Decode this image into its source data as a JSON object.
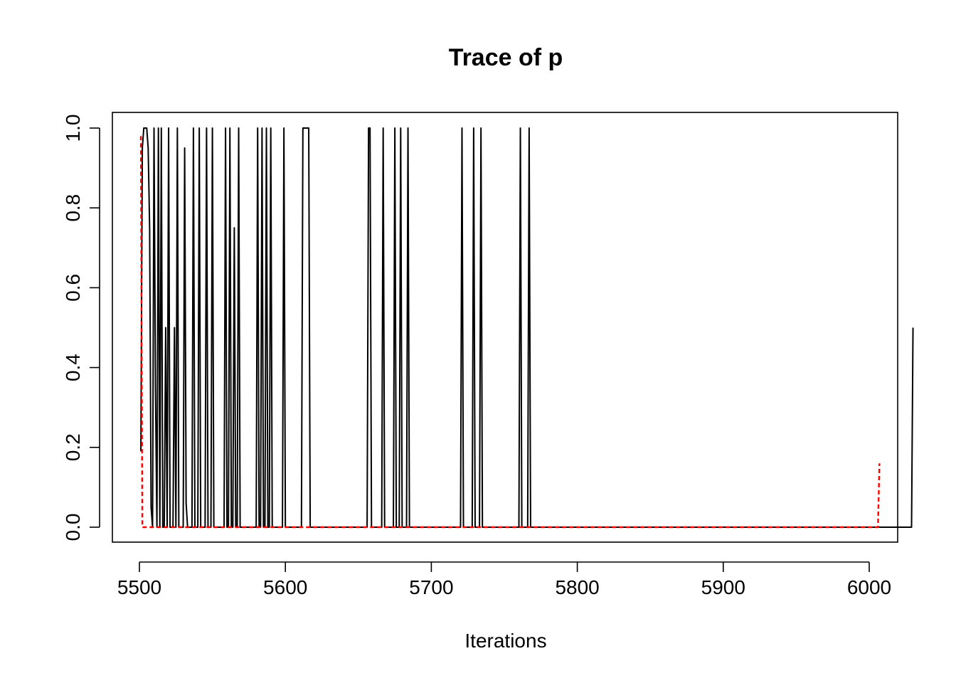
{
  "chart_data": {
    "type": "line",
    "title": "Trace of p",
    "xlabel": "Iterations",
    "ylabel": "",
    "xlim": [
      5500,
      6000
    ],
    "ylim": [
      0,
      1
    ],
    "xticks": [
      5500,
      5600,
      5700,
      5800,
      5900,
      6000
    ],
    "yticks": [
      0.0,
      0.2,
      0.4,
      0.6,
      0.8,
      1.0
    ],
    "ytick_labels": [
      "0.0",
      "0.2",
      "0.4",
      "0.6",
      "0.8",
      "1.0"
    ],
    "grid": false,
    "legend": "none",
    "x_start": 5501,
    "x_step": 1,
    "series": [
      {
        "color": "#000000",
        "dash": "solid",
        "values": [
          0.19,
          0.95,
          1.0,
          1.0,
          1.0,
          0.95,
          0.75,
          0.05,
          0.0,
          1.0,
          0.35,
          0.0,
          1.0,
          0.0,
          1.0,
          0.0,
          0.0,
          0.5,
          0.0,
          1.0,
          0.0,
          0.0,
          0.0,
          0.5,
          0.0,
          1.0,
          0.0,
          0.0,
          0.0,
          0.0,
          0.95,
          0.06,
          0.0,
          0.0,
          0.0,
          0.0,
          1.0,
          0.0,
          0.0,
          0.0,
          1.0,
          0.0,
          0.0,
          0.0,
          0.0,
          1.0,
          0.0,
          0.0,
          0.0,
          1.0,
          0.0,
          0.0,
          0.0,
          0.0,
          0.0,
          0.0,
          0.0,
          0.0,
          1.0,
          0.0,
          0.0,
          1.0,
          0.0,
          0.0,
          0.75,
          0.0,
          0.0,
          1.0,
          0.0,
          0.0,
          0.0,
          0.0,
          0.0,
          0.0,
          0.0,
          0.0,
          0.0,
          0.0,
          0.0,
          0.0,
          1.0,
          0.0,
          0.0,
          1.0,
          0.0,
          0.0,
          1.0,
          0.0,
          0.0,
          1.0,
          0.0,
          0.0,
          0.0,
          0.0,
          0.0,
          0.0,
          0.0,
          0.0,
          1.0,
          0.0,
          0.0,
          0.0,
          0.0,
          0.0,
          0.0,
          0.0,
          0.0,
          0.0,
          0.0,
          0.0,
          0.0,
          1.0,
          1.0,
          1.0,
          1.0,
          1.0,
          0.0,
          0.0,
          0.0,
          0.0,
          0.0,
          0.0,
          0.0,
          0.0,
          0.0,
          0.0,
          0.0,
          0.0,
          0.0,
          0.0,
          0.0,
          0.0,
          0.0,
          0.0,
          0.0,
          0.0,
          0.0,
          0.0,
          0.0,
          0.0,
          0.0,
          0.0,
          0.0,
          0.0,
          0.0,
          0.0,
          0.0,
          0.0,
          0.0,
          0.0,
          0.0,
          0.0,
          0.0,
          0.0,
          0.0,
          0.0,
          1.0,
          1.0,
          0.0,
          0.0,
          0.0,
          0.0,
          0.0,
          0.0,
          0.0,
          0.0,
          1.0,
          0.0,
          0.0,
          0.0,
          0.0,
          0.0,
          0.0,
          0.0,
          1.0,
          0.0,
          0.0,
          0.0,
          1.0,
          0.0,
          0.0,
          0.0,
          0.0,
          1.0,
          0.0,
          0.0,
          0.0,
          0.0,
          0.0,
          0.0,
          0.0,
          0.0,
          0.0,
          0.0,
          0.0,
          0.0,
          0.0,
          0.0,
          0.0,
          0.0,
          0.0,
          0.0,
          0.0,
          0.0,
          0.0,
          0.0,
          0.0,
          0.0,
          0.0,
          0.0,
          0.0,
          0.0,
          0.0,
          0.0,
          0.0,
          0.0,
          0.0,
          0.0,
          0.0,
          0.0,
          1.0,
          0.0,
          0.0,
          0.0,
          0.0,
          0.0,
          0.0,
          0.0,
          1.0,
          0.0,
          0.0,
          0.0,
          0.0,
          1.0,
          0.0,
          0.0,
          0.0,
          0.0,
          0.0,
          0.0,
          0.0,
          0.0,
          0.0,
          0.0,
          0.0,
          0.0,
          0.0,
          0.0,
          0.0,
          0.0,
          0.0,
          0.0,
          0.0,
          0.0,
          0.0,
          0.0,
          0.0,
          0.0,
          0.0,
          0.0,
          1.0,
          0.0,
          0.0,
          0.0,
          0.0,
          0.0,
          1.0,
          0.0,
          0.0,
          0.0,
          0.0,
          0.0,
          0.0,
          0.0,
          0.0,
          0.0,
          0.0,
          0.0,
          0.0,
          0.0,
          0.0,
          0.0,
          0.0,
          0.0,
          0.0,
          0.0,
          0.0,
          0.0,
          0.0,
          0.0,
          0.0,
          0.0,
          0.0,
          0.0,
          0.0,
          0.0,
          0.0,
          0.0,
          0.0,
          0.0,
          0.0,
          0.0,
          0.0,
          0.0,
          0.0,
          0.0,
          0.0,
          0.0,
          0.0,
          0.0,
          0.0,
          0.0,
          0.0,
          0.0,
          0.0,
          0.0,
          0.0,
          0.0,
          0.0,
          0.0,
          0.0,
          0.0,
          0.0,
          0.0,
          0.0,
          0.0,
          0.0,
          0.0,
          0.0,
          0.0,
          0.0,
          0.0,
          0.0,
          0.0,
          0.0,
          0.0,
          0.0,
          0.0,
          0.0,
          0.0,
          0.0,
          0.0,
          0.0,
          0.0,
          0.0,
          0.0,
          0.0,
          0.0,
          0.0,
          0.0,
          0.0,
          0.0,
          0.0,
          0.0,
          0.0,
          0.0,
          0.0,
          0.0,
          0.0,
          0.0,
          0.0,
          0.0,
          0.0,
          0.0,
          0.0,
          0.0,
          0.0,
          0.0,
          0.0,
          0.0,
          0.0,
          0.0,
          0.0,
          0.0,
          0.0,
          0.0,
          0.0,
          0.0,
          0.0,
          0.0,
          0.0,
          0.0,
          0.0,
          0.0,
          0.0,
          0.0,
          0.0,
          0.0,
          0.0,
          0.0,
          0.0,
          0.0,
          0.0,
          0.0,
          0.0,
          0.0,
          0.0,
          0.0,
          0.0,
          0.0,
          0.0,
          0.0,
          0.0,
          0.0,
          0.0,
          0.0,
          0.0,
          0.0,
          0.0,
          0.0,
          0.0,
          0.0,
          0.0,
          0.0,
          0.0,
          0.0,
          0.0,
          0.0,
          0.0,
          0.0,
          0.0,
          0.0,
          0.0,
          0.0,
          0.0,
          0.0,
          0.0,
          0.0,
          0.0,
          0.0,
          0.0,
          0.0,
          0.0,
          0.0,
          0.0,
          0.0,
          0.0,
          0.0,
          0.0,
          0.0,
          0.0,
          0.0,
          0.0,
          0.0,
          0.0,
          0.0,
          0.0,
          0.0,
          0.0,
          0.0,
          0.0,
          0.0,
          0.0,
          0.0,
          0.0,
          0.0,
          0.0,
          0.0,
          0.0,
          0.0,
          0.0,
          0.0,
          0.0,
          0.0,
          0.0,
          0.0,
          0.0,
          0.0,
          0.0,
          0.0,
          0.0,
          0.0,
          0.0,
          0.0,
          0.0,
          0.0,
          0.0,
          0.0,
          0.0,
          0.0,
          0.0,
          0.0,
          0.0,
          0.0,
          0.0,
          0.0,
          0.0,
          0.0,
          0.0,
          0.0,
          0.0,
          0.0,
          0.0,
          0.0,
          0.0,
          0.0,
          0.0,
          0.0,
          0.0,
          0.0,
          0.0,
          0.0,
          0.0,
          0.0,
          0.0,
          0.0,
          0.0,
          0.0,
          0.0,
          0.0,
          0.0,
          0.0,
          0.0,
          0.0,
          0.0,
          0.0,
          0.0,
          0.0,
          0.0,
          0.0,
          0.0,
          0.0,
          0.0,
          0.0,
          0.0,
          0.0,
          0.0,
          0.0,
          0.0,
          0.5
        ]
      },
      {
        "color": "#ff0000",
        "dash": "dashed",
        "values": [
          0.98,
          0.0,
          0.0,
          0.0,
          0.0,
          0.0,
          0.0,
          0.0,
          0.0,
          0.0,
          0.0,
          0.0,
          0.0,
          0.0,
          0.0,
          0.0,
          0.0,
          0.0,
          0.0,
          0.0,
          0.0,
          0.0,
          0.0,
          0.0,
          0.0,
          0.0,
          0.0,
          0.0,
          0.0,
          0.0,
          0.0,
          0.0,
          0.0,
          0.0,
          0.0,
          0.0,
          0.0,
          0.0,
          0.0,
          0.0,
          0.0,
          0.0,
          0.0,
          0.0,
          0.0,
          0.0,
          0.0,
          0.0,
          0.0,
          0.0,
          0.0,
          0.0,
          0.0,
          0.0,
          0.0,
          0.0,
          0.0,
          0.0,
          0.0,
          0.0,
          0.0,
          0.0,
          0.0,
          0.0,
          0.0,
          0.0,
          0.0,
          0.0,
          0.0,
          0.0,
          0.0,
          0.0,
          0.0,
          0.0,
          0.0,
          0.0,
          0.0,
          0.0,
          0.0,
          0.0,
          0.0,
          0.0,
          0.0,
          0.0,
          0.0,
          0.0,
          0.0,
          0.0,
          0.0,
          0.0,
          0.0,
          0.0,
          0.0,
          0.0,
          0.0,
          0.0,
          0.0,
          0.0,
          0.0,
          0.0,
          0.0,
          0.0,
          0.0,
          0.0,
          0.0,
          0.0,
          0.0,
          0.0,
          0.0,
          0.0,
          0.0,
          0.0,
          0.0,
          0.0,
          0.0,
          0.0,
          0.0,
          0.0,
          0.0,
          0.0,
          0.0,
          0.0,
          0.0,
          0.0,
          0.0,
          0.0,
          0.0,
          0.0,
          0.0,
          0.0,
          0.0,
          0.0,
          0.0,
          0.0,
          0.0,
          0.0,
          0.0,
          0.0,
          0.0,
          0.0,
          0.0,
          0.0,
          0.0,
          0.0,
          0.0,
          0.0,
          0.0,
          0.0,
          0.0,
          0.0,
          0.0,
          0.0,
          0.0,
          0.0,
          0.0,
          0.0,
          0.0,
          0.0,
          0.0,
          0.0,
          0.0,
          0.0,
          0.0,
          0.0,
          0.0,
          0.0,
          0.0,
          0.0,
          0.0,
          0.0,
          0.0,
          0.0,
          0.0,
          0.0,
          0.0,
          0.0,
          0.0,
          0.0,
          0.0,
          0.0,
          0.0,
          0.0,
          0.0,
          0.0,
          0.0,
          0.0,
          0.0,
          0.0,
          0.0,
          0.0,
          0.0,
          0.0,
          0.0,
          0.0,
          0.0,
          0.0,
          0.0,
          0.0,
          0.0,
          0.0,
          0.0,
          0.0,
          0.0,
          0.0,
          0.0,
          0.0,
          0.0,
          0.0,
          0.0,
          0.0,
          0.0,
          0.0,
          0.0,
          0.0,
          0.0,
          0.0,
          0.0,
          0.0,
          0.0,
          0.0,
          0.0,
          0.0,
          0.0,
          0.0,
          0.0,
          0.0,
          0.0,
          0.0,
          0.0,
          0.0,
          0.0,
          0.0,
          0.0,
          0.0,
          0.0,
          0.0,
          0.0,
          0.0,
          0.0,
          0.0,
          0.0,
          0.0,
          0.0,
          0.0,
          0.0,
          0.0,
          0.0,
          0.0,
          0.0,
          0.0,
          0.0,
          0.0,
          0.0,
          0.0,
          0.0,
          0.0,
          0.0,
          0.0,
          0.0,
          0.0,
          0.0,
          0.0,
          0.0,
          0.0,
          0.0,
          0.0,
          0.0,
          0.0,
          0.0,
          0.0,
          0.0,
          0.0,
          0.0,
          0.0,
          0.0,
          0.0,
          0.0,
          0.0,
          0.0,
          0.0,
          0.0,
          0.0,
          0.0,
          0.0,
          0.0,
          0.0,
          0.0,
          0.0,
          0.0,
          0.0,
          0.0,
          0.0,
          0.0,
          0.0,
          0.0,
          0.0,
          0.0,
          0.0,
          0.0,
          0.0,
          0.0,
          0.0,
          0.0,
          0.0,
          0.0,
          0.0,
          0.0,
          0.0,
          0.0,
          0.0,
          0.0,
          0.0,
          0.0,
          0.0,
          0.0,
          0.0,
          0.0,
          0.0,
          0.0,
          0.0,
          0.0,
          0.0,
          0.0,
          0.0,
          0.0,
          0.0,
          0.0,
          0.0,
          0.0,
          0.0,
          0.0,
          0.0,
          0.0,
          0.0,
          0.0,
          0.0,
          0.0,
          0.0,
          0.0,
          0.0,
          0.0,
          0.0,
          0.0,
          0.0,
          0.0,
          0.0,
          0.0,
          0.0,
          0.0,
          0.0,
          0.0,
          0.0,
          0.0,
          0.0,
          0.0,
          0.0,
          0.0,
          0.0,
          0.0,
          0.0,
          0.0,
          0.0,
          0.0,
          0.0,
          0.0,
          0.0,
          0.0,
          0.0,
          0.0,
          0.0,
          0.0,
          0.0,
          0.0,
          0.0,
          0.0,
          0.0,
          0.0,
          0.0,
          0.0,
          0.0,
          0.0,
          0.0,
          0.0,
          0.0,
          0.0,
          0.0,
          0.0,
          0.0,
          0.0,
          0.0,
          0.0,
          0.0,
          0.0,
          0.0,
          0.0,
          0.0,
          0.0,
          0.0,
          0.0,
          0.0,
          0.0,
          0.0,
          0.0,
          0.0,
          0.0,
          0.0,
          0.0,
          0.0,
          0.0,
          0.0,
          0.0,
          0.0,
          0.0,
          0.0,
          0.0,
          0.0,
          0.0,
          0.0,
          0.0,
          0.0,
          0.0,
          0.0,
          0.0,
          0.0,
          0.0,
          0.0,
          0.0,
          0.0,
          0.0,
          0.0,
          0.0,
          0.0,
          0.0,
          0.0,
          0.0,
          0.0,
          0.0,
          0.0,
          0.0,
          0.0,
          0.0,
          0.0,
          0.0,
          0.0,
          0.0,
          0.0,
          0.0,
          0.0,
          0.0,
          0.0,
          0.0,
          0.0,
          0.0,
          0.0,
          0.0,
          0.0,
          0.0,
          0.0,
          0.0,
          0.0,
          0.0,
          0.0,
          0.0,
          0.0,
          0.0,
          0.0,
          0.0,
          0.0,
          0.0,
          0.0,
          0.0,
          0.0,
          0.0,
          0.0,
          0.0,
          0.0,
          0.0,
          0.0,
          0.0,
          0.0,
          0.0,
          0.0,
          0.0,
          0.0,
          0.0,
          0.0,
          0.0,
          0.0,
          0.0,
          0.0,
          0.0,
          0.0,
          0.0,
          0.0,
          0.0,
          0.0,
          0.0,
          0.0,
          0.0,
          0.0,
          0.0,
          0.0,
          0.0,
          0.0,
          0.0,
          0.0,
          0.16
        ]
      }
    ]
  }
}
